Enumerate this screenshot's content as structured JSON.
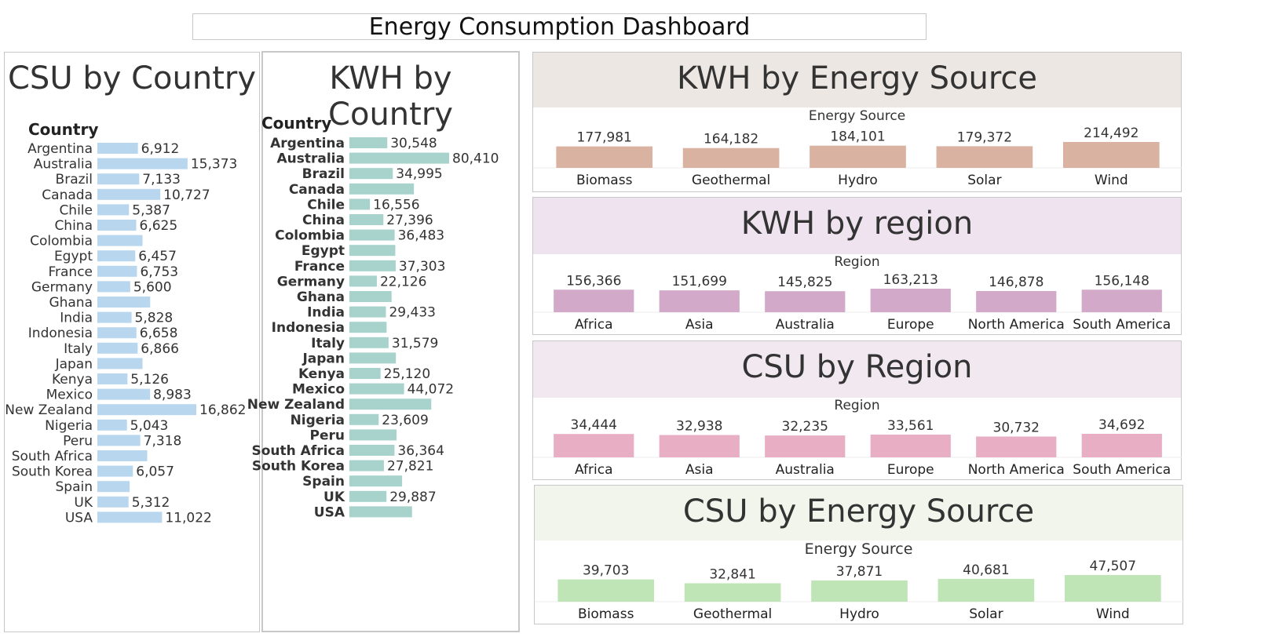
{
  "dashboard_title": "Energy Consumption Dashboard",
  "chart_data": [
    {
      "id": "csu_country",
      "type": "bar",
      "orientation": "horizontal",
      "title": "CSU by Country",
      "ylabel": "Country",
      "color": "#b8d6ee",
      "categories": [
        "Argentina",
        "Australia",
        "Brazil",
        "Canada",
        "Chile",
        "China",
        "Colombia",
        "Egypt",
        "France",
        "Germany",
        "Ghana",
        "India",
        "Indonesia",
        "Italy",
        "Japan",
        "Kenya",
        "Mexico",
        "New Zealand",
        "Nigeria",
        "Peru",
        "South Africa",
        "South Korea",
        "Spain",
        "UK",
        "USA"
      ],
      "values": [
        6912,
        15373,
        7133,
        10727,
        5387,
        6625,
        7700,
        6457,
        6753,
        5600,
        9000,
        5828,
        6658,
        6866,
        7700,
        5126,
        8983,
        16862,
        5043,
        7318,
        8500,
        6057,
        5500,
        5312,
        11022
      ],
      "labels": [
        "6,912",
        "15,373",
        "7,133",
        "10,727",
        "5,387",
        "6,625",
        "",
        "6,457",
        "6,753",
        "5,600",
        "",
        "5,828",
        "6,658",
        "6,866",
        "",
        "5,126",
        "8,983",
        "16,862",
        "5,043",
        "7,318",
        "",
        "6,057",
        "",
        "5,312",
        "11,022"
      ]
    },
    {
      "id": "kwh_country",
      "type": "bar",
      "orientation": "horizontal",
      "title": "KWH by Country",
      "ylabel": "Country",
      "color": "#a7d3cc",
      "categories": [
        "Argentina",
        "Australia",
        "Brazil",
        "Canada",
        "Chile",
        "China",
        "Colombia",
        "Egypt",
        "France",
        "Germany",
        "Ghana",
        "India",
        "Indonesia",
        "Italy",
        "Japan",
        "Kenya",
        "Mexico",
        "New Zealand",
        "Nigeria",
        "Peru",
        "South Africa",
        "South Korea",
        "Spain",
        "UK",
        "USA"
      ],
      "values": [
        30548,
        80410,
        34995,
        52000,
        16556,
        27396,
        36483,
        37000,
        37303,
        22126,
        34000,
        29433,
        30000,
        31579,
        37500,
        25120,
        44072,
        66000,
        23609,
        38000,
        36364,
        27821,
        42500,
        29887,
        50500
      ],
      "labels": [
        "30,548",
        "80,410",
        "34,995",
        "",
        "16,556",
        "27,396",
        "36,483",
        "",
        "37,303",
        "22,126",
        "",
        "29,433",
        "",
        "31,579",
        "",
        "25,120",
        "44,072",
        "",
        "23,609",
        "",
        "36,364",
        "27,821",
        "",
        "29,887",
        ""
      ]
    },
    {
      "id": "kwh_source",
      "type": "bar",
      "title": "KWH by Energy Source",
      "xlabel": "Energy Source",
      "color": "#d9b2a2",
      "header_bg": "#ece7e3",
      "categories": [
        "Biomass",
        "Geothermal",
        "Hydro",
        "Solar",
        "Wind"
      ],
      "values": [
        177981,
        164182,
        184101,
        179372,
        214492
      ],
      "labels": [
        "177,981",
        "164,182",
        "184,101",
        "179,372",
        "214,492"
      ]
    },
    {
      "id": "kwh_region",
      "type": "bar",
      "title": "KWH by region",
      "xlabel": "Region",
      "color": "#d2a9c8",
      "header_bg": "#efe3ef",
      "categories": [
        "Africa",
        "Asia",
        "Australia",
        "Europe",
        "North America",
        "South America"
      ],
      "values": [
        156366,
        151699,
        145825,
        163213,
        146878,
        156148
      ],
      "labels": [
        "156,366",
        "151,699",
        "145,825",
        "163,213",
        "146,878",
        "156,148"
      ]
    },
    {
      "id": "csu_region",
      "type": "bar",
      "title": "CSU by Region",
      "xlabel": "Region",
      "color": "#e8aec4",
      "header_bg": "#f2e9f0",
      "categories": [
        "Africa",
        "Asia",
        "Australia",
        "Europe",
        "North America",
        "South America"
      ],
      "values": [
        34444,
        32938,
        32235,
        33561,
        30732,
        34692
      ],
      "labels": [
        "34,444",
        "32,938",
        "32,235",
        "33,561",
        "30,732",
        "34,692"
      ]
    },
    {
      "id": "csu_source",
      "type": "bar",
      "title": "CSU by Energy Source",
      "xlabel": "Energy Source",
      "color": "#bfe5b6",
      "header_bg": "#f2f5ec",
      "categories": [
        "Biomass",
        "Geothermal",
        "Hydro",
        "Solar",
        "Wind"
      ],
      "values": [
        39703,
        32841,
        37871,
        40681,
        47507
      ],
      "labels": [
        "39,703",
        "32,841",
        "37,871",
        "40,681",
        "47,507"
      ]
    }
  ]
}
